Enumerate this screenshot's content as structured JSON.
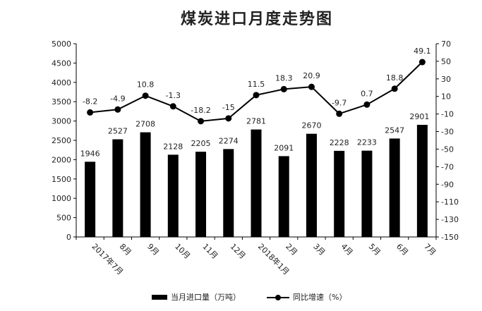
{
  "chart_data": {
    "type": "bar+line",
    "title": "煤炭进口月度走势图",
    "categories": [
      "2017年7月",
      "8月",
      "9月",
      "10月",
      "11月",
      "12月",
      "2018年1月",
      "2月",
      "3月",
      "4月",
      "5月",
      "6月",
      "7月"
    ],
    "series": [
      {
        "name": "当月进口量（万吨）",
        "type": "bar",
        "axis": "left",
        "values": [
          1946,
          2527,
          2708,
          2128,
          2205,
          2274,
          2781,
          2091,
          2670,
          2228,
          2233,
          2547,
          2901
        ]
      },
      {
        "name": "同比增速（%）",
        "type": "line",
        "axis": "right",
        "values": [
          -8.2,
          -4.9,
          10.8,
          -1.3,
          -18.2,
          -15,
          11.5,
          18.3,
          20.9,
          -9.7,
          0.7,
          18.8,
          49.1
        ]
      }
    ],
    "left_axis": {
      "min": 0,
      "max": 5000,
      "step": 500
    },
    "right_axis": {
      "min": -150,
      "max": 70,
      "step": 20
    },
    "legend_position": "bottom",
    "colors": {
      "bar": "#000000",
      "line": "#000000"
    }
  }
}
